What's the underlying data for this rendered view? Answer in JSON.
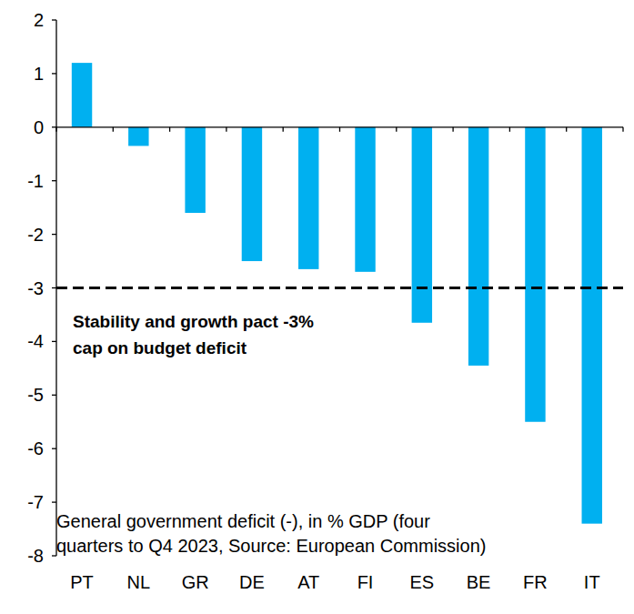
{
  "chart_data": {
    "type": "bar",
    "title": [
      "General government deficit (-), in % GDP (four",
      "quarters to Q4 2023, Source: European Commission)"
    ],
    "categories": [
      "PT",
      "NL",
      "GR",
      "DE",
      "AT",
      "FI",
      "ES",
      "BE",
      "FR",
      "IT"
    ],
    "values": [
      1.2,
      -0.35,
      -1.6,
      -2.5,
      -2.65,
      -2.7,
      -3.65,
      -4.45,
      -5.5,
      -7.4
    ],
    "color": "#00b0f0",
    "ylim": [
      -8,
      2
    ],
    "yticks": [
      -8,
      -7,
      -6,
      -5,
      -4,
      -3,
      -2,
      -1,
      0,
      1,
      2
    ],
    "grid": false,
    "reference_lines": [
      {
        "value": -3,
        "label": [
          "Stability and growth pact -3%",
          "cap on budget deficit"
        ]
      }
    ]
  }
}
